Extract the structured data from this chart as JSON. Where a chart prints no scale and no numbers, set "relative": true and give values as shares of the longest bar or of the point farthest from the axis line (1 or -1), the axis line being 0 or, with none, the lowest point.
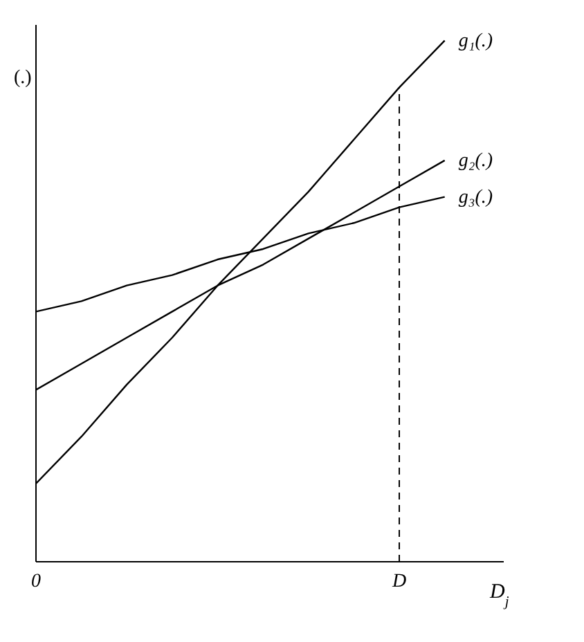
{
  "chart_data": {
    "type": "line",
    "relative": true,
    "ylabel": "(.)",
    "xlabel": "D$_{j}$",
    "categories": [
      "0",
      null,
      null,
      null,
      null,
      null,
      null,
      null,
      "D",
      null
    ],
    "series": [
      {
        "name": "g₁(.)",
        "color": "#000000",
        "values": [
          0.15,
          0.24,
          0.34,
          0.43,
          0.53,
          0.62,
          0.71,
          0.81,
          0.91,
          1.0
        ]
      },
      {
        "name": "g₂(.)",
        "color": "#000000",
        "values": [
          0.33,
          0.38,
          0.43,
          0.48,
          0.53,
          0.57,
          0.62,
          0.67,
          0.72,
          0.77
        ]
      },
      {
        "name": "g₃(.)",
        "color": "#000000",
        "values": [
          0.48,
          0.5,
          0.53,
          0.55,
          0.58,
          0.6,
          0.63,
          0.65,
          0.68,
          0.7
        ]
      }
    ],
    "ref_lines": [
      {
        "axis": "x",
        "value": "D",
        "line_style": "dashed",
        "color": "#000000"
      }
    ],
    "marker": "none",
    "line_style": "solid"
  }
}
